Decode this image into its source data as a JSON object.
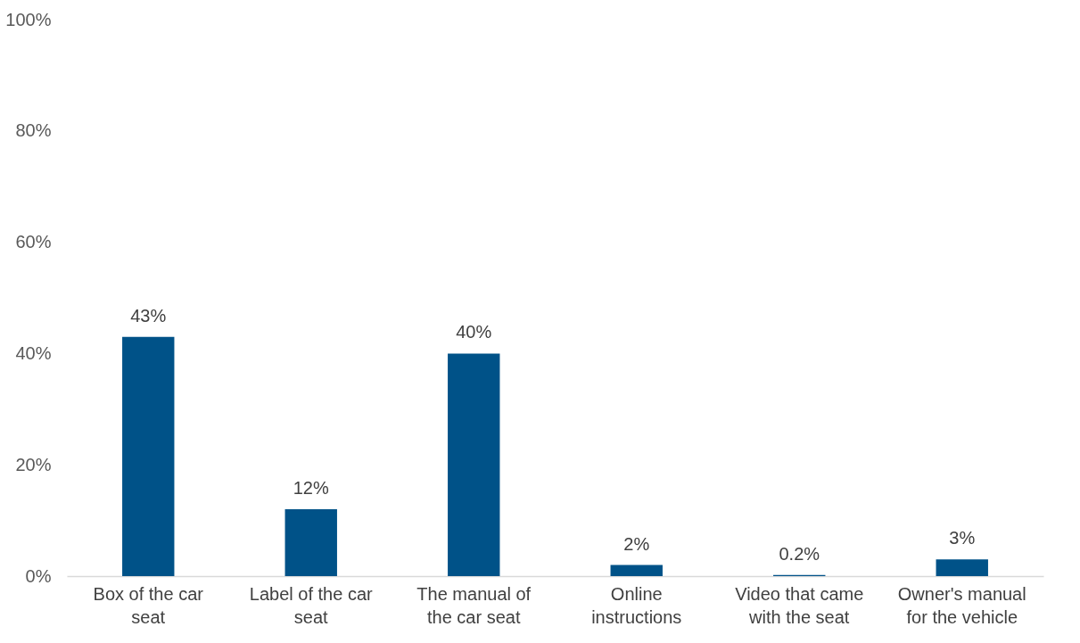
{
  "chart_data": {
    "type": "bar",
    "categories": [
      "Box of the car seat",
      "Label of the car seat",
      "The manual of the car seat",
      "Online instructions",
      "Video that came with the seat",
      "Owner's manual for the vehicle"
    ],
    "values": [
      43,
      12,
      40,
      2,
      0.2,
      3
    ],
    "value_labels": [
      "43%",
      "12%",
      "40%",
      "2%",
      "0.2%",
      "3%"
    ],
    "color": "#005288",
    "ylim": [
      0,
      100
    ],
    "yticks": [
      {
        "value": 0,
        "label": "0%"
      },
      {
        "value": 20,
        "label": "20%"
      },
      {
        "value": 40,
        "label": "40%"
      },
      {
        "value": 60,
        "label": "60%"
      },
      {
        "value": 80,
        "label": "80%"
      },
      {
        "value": 100,
        "label": "100%"
      }
    ],
    "grid": false
  }
}
